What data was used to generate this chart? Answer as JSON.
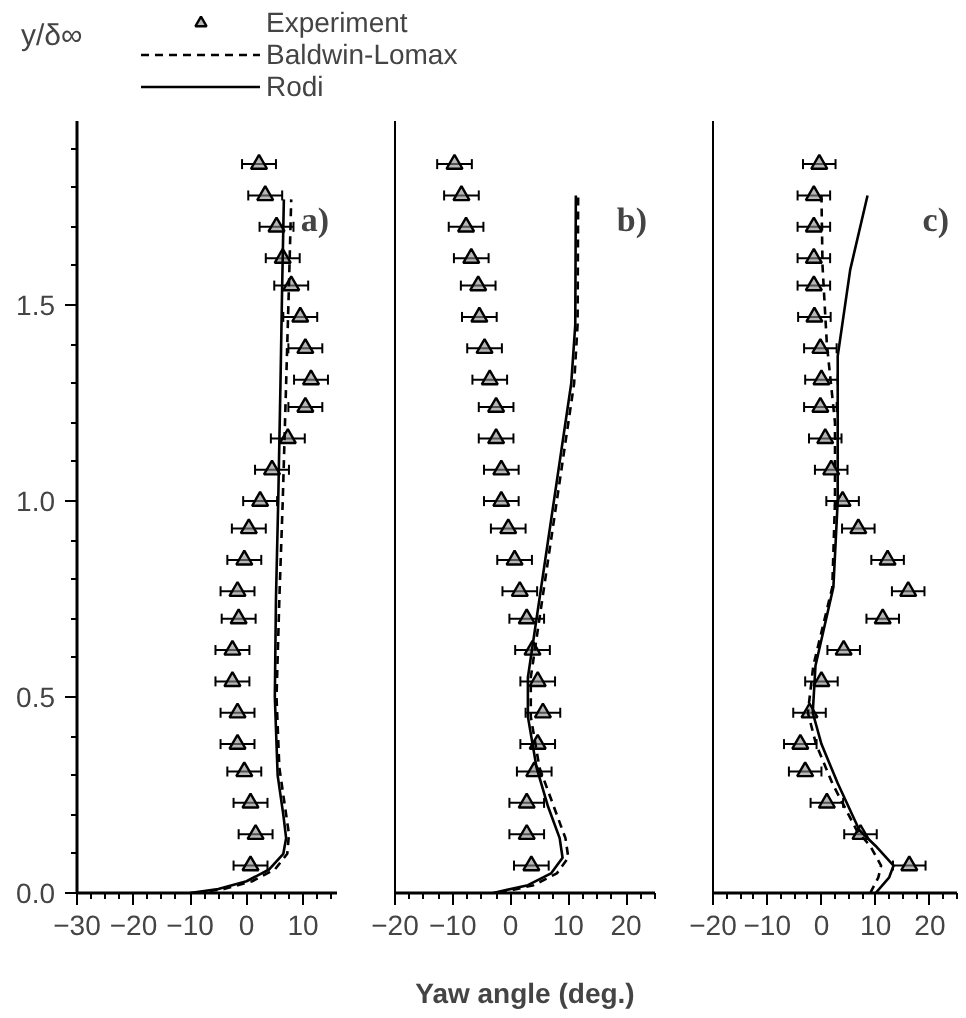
{
  "chart_data": [
    {
      "type": "scatter",
      "annotations": [
        "a)"
      ],
      "ylabel": "y/δ∞",
      "legend": "top",
      "grid": false,
      "xlim": [
        -30,
        16
      ],
      "ylim": [
        0,
        1.97
      ],
      "xticks": [
        -30,
        {
          "value": -27.5,
          "label": null
        },
        {
          "value": -25,
          "label": null
        },
        {
          "value": -22.5,
          "label": null
        },
        -20,
        {
          "value": -17.5,
          "label": null
        },
        {
          "value": -15,
          "label": null
        },
        {
          "value": -12.5,
          "label": null
        },
        -10,
        {
          "value": -7.5,
          "label": null
        },
        {
          "value": -5,
          "label": null
        },
        {
          "value": -2.5,
          "label": null
        },
        0,
        {
          "value": 2.5,
          "label": null
        },
        {
          "value": 5,
          "label": null
        },
        {
          "value": 7.5,
          "label": null
        },
        10,
        {
          "value": 12.5,
          "label": null
        },
        {
          "value": 15,
          "label": null
        }
      ],
      "yticks": [
        {
          "value": 0,
          "label": "0.0"
        },
        {
          "value": 0.1,
          "label": null
        },
        {
          "value": 0.2,
          "label": null
        },
        {
          "value": 0.3,
          "label": null
        },
        {
          "value": 0.4,
          "label": null
        },
        0.5,
        {
          "value": 0.6,
          "label": null
        },
        {
          "value": 0.7,
          "label": null
        },
        {
          "value": 0.8,
          "label": null
        },
        {
          "value": 0.9,
          "label": null
        },
        {
          "value": 1,
          "label": "1.0"
        },
        {
          "value": 1.1,
          "label": null
        },
        {
          "value": 1.2,
          "label": null
        },
        {
          "value": 1.3,
          "label": null
        },
        {
          "value": 1.4,
          "label": null
        },
        1.5,
        {
          "value": 1.6,
          "label": null
        },
        {
          "value": 1.7,
          "label": null
        },
        {
          "value": 1.8,
          "label": null
        },
        {
          "value": 1.9,
          "label": null
        }
      ],
      "series": [
        {
          "name": "Experiment",
          "type": "scatter",
          "marker": "triangle",
          "color": "#000000",
          "x": [
            0.7,
            1.6,
            0.7,
            -0.4,
            -1.6,
            -1.6,
            -2.5,
            -2.5,
            -1.4,
            -1.6,
            -0.4,
            0.4,
            2.4,
            4.5,
            7.3,
            10.4,
            11.4,
            10.4,
            9.5,
            7.9,
            6.4,
            5.3,
            3.3,
            2.2
          ],
          "values": [
            0.07,
            0.15,
            0.23,
            0.31,
            0.38,
            0.46,
            0.54,
            0.62,
            0.7,
            0.77,
            0.85,
            0.93,
            1.0,
            1.08,
            1.16,
            1.24,
            1.31,
            1.39,
            1.47,
            1.55,
            1.62,
            1.7,
            1.78,
            1.86
          ],
          "xerrors": [
            3,
            3,
            3,
            3,
            3,
            3,
            3,
            3,
            3,
            3,
            3,
            3,
            3,
            3,
            3,
            3,
            3,
            3,
            3,
            3,
            3,
            3,
            3,
            3
          ]
        },
        {
          "name": "Baldwin-Lomax",
          "type": "line",
          "line_style": "dashed",
          "color": "#000000",
          "x": [
            -9,
            -4,
            1,
            5,
            7.2,
            7.5,
            6.8,
            5.8,
            5.3,
            5.8,
            6.4,
            7.0,
            7.5,
            7.9
          ],
          "values": [
            0,
            0.01,
            0.03,
            0.06,
            0.1,
            0.15,
            0.22,
            0.32,
            0.5,
            0.75,
            1.0,
            1.3,
            1.55,
            1.77
          ]
        },
        {
          "name": "Rodi",
          "type": "line",
          "line_style": "solid",
          "color": "#000000",
          "x": [
            -10,
            -5,
            0,
            4,
            6.5,
            7,
            6.5,
            5.5,
            5,
            5.2,
            5.6,
            6.0,
            6.3,
            6.6
          ],
          "values": [
            0,
            0.01,
            0.03,
            0.06,
            0.1,
            0.14,
            0.2,
            0.3,
            0.5,
            0.75,
            1.0,
            1.3,
            1.55,
            1.77
          ]
        }
      ]
    },
    {
      "type": "scatter",
      "annotations": [
        "b)"
      ],
      "xlabel": "Yaw angle (deg.)",
      "tick_labels": "x",
      "grid": false,
      "xlim": [
        -20,
        25
      ],
      "ylim": [
        0,
        1.97
      ],
      "xticks": [
        -20,
        {
          "value": -17.5,
          "label": null
        },
        {
          "value": -15,
          "label": null
        },
        {
          "value": -12.5,
          "label": null
        },
        -10,
        {
          "value": -7.5,
          "label": null
        },
        {
          "value": -5,
          "label": null
        },
        {
          "value": -2.5,
          "label": null
        },
        0,
        {
          "value": 2.5,
          "label": null
        },
        {
          "value": 5,
          "label": null
        },
        {
          "value": 7.5,
          "label": null
        },
        10,
        {
          "value": 12.5,
          "label": null
        },
        {
          "value": 15,
          "label": null
        },
        {
          "value": 17.5,
          "label": null
        },
        20,
        {
          "value": 22.5,
          "label": null
        },
        {
          "value": 25,
          "label": null
        }
      ],
      "series": [
        {
          "type": "scatter",
          "marker": "triangle",
          "color": "#000000",
          "x": [
            3.6,
            2.8,
            2.8,
            4.1,
            4.7,
            5.6,
            4.7,
            3.8,
            2.8,
            1.6,
            0.7,
            -0.4,
            -1.6,
            -1.6,
            -2.5,
            -2.5,
            -3.6,
            -4.5,
            -5.4,
            -5.6,
            -6.8,
            -7.7,
            -8.5,
            -9.7
          ],
          "values": [
            0.07,
            0.15,
            0.23,
            0.31,
            0.38,
            0.46,
            0.54,
            0.62,
            0.7,
            0.77,
            0.85,
            0.93,
            1.0,
            1.08,
            1.16,
            1.24,
            1.31,
            1.39,
            1.47,
            1.55,
            1.62,
            1.7,
            1.78,
            1.86
          ],
          "xerrors": [
            3,
            3,
            3,
            3,
            3,
            3,
            3,
            3,
            3,
            3,
            3,
            3,
            3,
            3,
            3,
            3,
            3,
            3,
            3,
            3,
            3,
            3,
            3,
            3
          ]
        },
        {
          "type": "line",
          "line_style": "dashed",
          "color": "#000000",
          "x": [
            -2,
            4,
            8,
            10,
            9.5,
            7.5,
            5,
            3.5,
            3.5,
            5,
            7,
            9,
            11,
            11.6,
            11.7
          ],
          "values": [
            0,
            0.02,
            0.05,
            0.09,
            0.14,
            0.22,
            0.32,
            0.45,
            0.55,
            0.7,
            0.9,
            1.1,
            1.3,
            1.45,
            1.78
          ]
        },
        {
          "type": "line",
          "line_style": "solid",
          "color": "#000000",
          "x": [
            -3,
            3,
            7,
            9,
            8.5,
            6.5,
            4.5,
            3,
            3,
            4.5,
            6.5,
            8.5,
            10.5,
            11.2,
            11.3
          ],
          "values": [
            0,
            0.02,
            0.05,
            0.09,
            0.14,
            0.22,
            0.32,
            0.45,
            0.55,
            0.7,
            0.9,
            1.1,
            1.3,
            1.45,
            1.78
          ]
        }
      ]
    },
    {
      "type": "scatter",
      "annotations": [
        "c)"
      ],
      "tick_labels": "x",
      "grid": false,
      "xlim": [
        -20,
        25
      ],
      "ylim": [
        0,
        1.97
      ],
      "xticks": [
        -20,
        {
          "value": -17.5,
          "label": null
        },
        {
          "value": -15,
          "label": null
        },
        {
          "value": -12.5,
          "label": null
        },
        -10,
        {
          "value": -7.5,
          "label": null
        },
        {
          "value": -5,
          "label": null
        },
        {
          "value": -2.5,
          "label": null
        },
        0,
        {
          "value": 2.5,
          "label": null
        },
        {
          "value": 5,
          "label": null
        },
        {
          "value": 7.5,
          "label": null
        },
        10,
        {
          "value": 12.5,
          "label": null
        },
        {
          "value": 15,
          "label": null
        },
        {
          "value": 17.5,
          "label": null
        },
        20,
        {
          "value": 22.5,
          "label": null
        },
        {
          "value": 25,
          "label": null
        }
      ],
      "series": [
        {
          "type": "scatter",
          "marker": "triangle",
          "color": "#000000",
          "x": [
            16.2,
            7.2,
            1.0,
            -3.0,
            -3.9,
            -2.2,
            0,
            4.1,
            11.3,
            16.0,
            12.2,
            6.8,
            3.9,
            1.8,
            0.7,
            -0.2,
            0,
            -0.2,
            -1.3,
            -1.4,
            -1.4,
            -1.4,
            -1.4,
            -0.4
          ],
          "values": [
            0.07,
            0.15,
            0.23,
            0.31,
            0.38,
            0.46,
            0.54,
            0.62,
            0.7,
            0.77,
            0.85,
            0.93,
            1.0,
            1.08,
            1.16,
            1.24,
            1.31,
            1.39,
            1.47,
            1.55,
            1.62,
            1.7,
            1.78,
            1.86
          ],
          "xerrors": [
            3,
            3,
            3,
            3,
            3,
            3,
            3,
            3,
            3,
            3,
            3,
            3,
            3,
            3,
            3,
            3,
            3,
            3,
            3,
            3,
            3,
            3,
            3,
            3
          ]
        },
        {
          "type": "line",
          "line_style": "dashed",
          "color": "#000000",
          "x": [
            9,
            10.5,
            11,
            9,
            6.5,
            2,
            -1,
            -2.5,
            -1.5,
            2,
            2.5,
            2.5,
            1,
            0.2,
            0
          ],
          "values": [
            0,
            0.04,
            0.07,
            0.12,
            0.16,
            0.28,
            0.38,
            0.46,
            0.58,
            0.78,
            1.0,
            1.2,
            1.4,
            1.6,
            1.78
          ]
        },
        {
          "type": "line",
          "line_style": "solid",
          "color": "#000000",
          "x": [
            10,
            12.5,
            13.3,
            10,
            7,
            3,
            0,
            -1.6,
            -1.1,
            2.2,
            3,
            3,
            5.3,
            8.5
          ],
          "values": [
            0,
            0.04,
            0.07,
            0.12,
            0.16,
            0.28,
            0.38,
            0.46,
            0.58,
            0.78,
            1.0,
            1.37,
            1.59,
            1.78
          ]
        }
      ]
    }
  ]
}
